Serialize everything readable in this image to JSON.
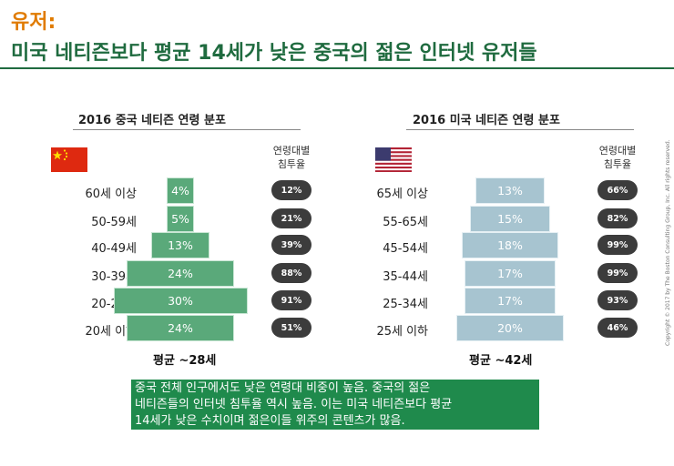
{
  "header": {
    "title_line1": "유저:",
    "title_line2": "미국 네티즌보다 평균 14세가 낮은 중국의 젊은 인터넷 유저들"
  },
  "colors": {
    "title_orange": "#e07b00",
    "title_green": "#1f6b3f",
    "china_bar": "#5aa97a",
    "china_bar_border": "#c9e6d4",
    "us_bar": "#a7c4d0",
    "us_bar_border": "#e6f0f4",
    "pill": "#3c3c3c",
    "summary_bg": "#1f8a4c"
  },
  "chart_data": [
    {
      "type": "bar",
      "title": "2016 중국 네티즌 연령 분포",
      "flag": "china-flag-icon",
      "penetration_header": "연령대별\n침투율",
      "categories": [
        "60세 이상",
        "50-59세",
        "40-49세",
        "30-39세",
        "20-29세",
        "20세 이하"
      ],
      "series": [
        {
          "values": [
            4,
            5,
            13,
            24,
            30,
            24
          ],
          "value_labels": [
            "4%",
            "5%",
            "13%",
            "24%",
            "30%",
            "24%"
          ]
        }
      ],
      "penetration_labels": [
        "12%",
        "21%",
        "39%",
        "88%",
        "91%",
        "51%"
      ],
      "average_label": "평균 ~28세"
    },
    {
      "type": "bar",
      "title": "2016 미국 네티즌 연령 분포",
      "flag": "us-flag-icon",
      "penetration_header": "연령대별\n침투율",
      "categories": [
        "65세 이상",
        "55-65세",
        "45-54세",
        "35-44세",
        "25-34세",
        "25세 이하"
      ],
      "series": [
        {
          "values": [
            13,
            15,
            18,
            17,
            17,
            20
          ],
          "value_labels": [
            "13%",
            "15%",
            "18%",
            "17%",
            "17%",
            "20%"
          ]
        }
      ],
      "penetration_labels": [
        "66%",
        "82%",
        "99%",
        "99%",
        "93%",
        "46%"
      ],
      "average_label": "평균 ~42세"
    }
  ],
  "summary": {
    "lines": [
      "중국 전체 인구에서도 낮은 연령대 비중이 높음. 중국의 젊은",
      "네티즌들의 인터넷 침투율 역시 높음. 이는 미국 네티즌보다 평균",
      "14세가 낮은 수치이며 젊은이들 위주의 콘텐츠가 많음."
    ]
  },
  "copyright": "Copyright © 2017 by The Boston Consulting Group, Inc. All rights reserved."
}
